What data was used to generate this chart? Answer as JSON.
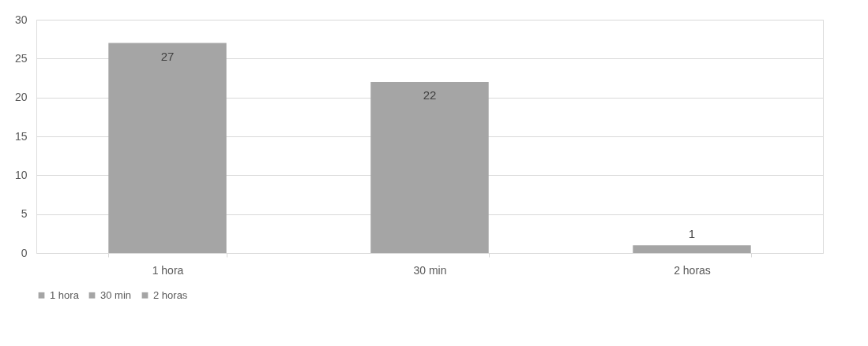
{
  "chart_data": {
    "type": "bar",
    "categories": [
      "1 hora",
      "30 min",
      "2 horas"
    ],
    "series": [
      {
        "name": "1 hora",
        "color": "#a5a5a5",
        "values": [
          27,
          null,
          null
        ]
      },
      {
        "name": "30 min",
        "color": "#a5a5a5",
        "values": [
          null,
          22,
          null
        ]
      },
      {
        "name": "2 horas",
        "color": "#a5a5a5",
        "values": [
          null,
          null,
          1
        ]
      }
    ],
    "ylim": [
      0,
      30
    ],
    "yticks": [
      0,
      5,
      10,
      15,
      20,
      25,
      30
    ],
    "grid": "y",
    "legend": "bottom",
    "data_labels": true
  }
}
